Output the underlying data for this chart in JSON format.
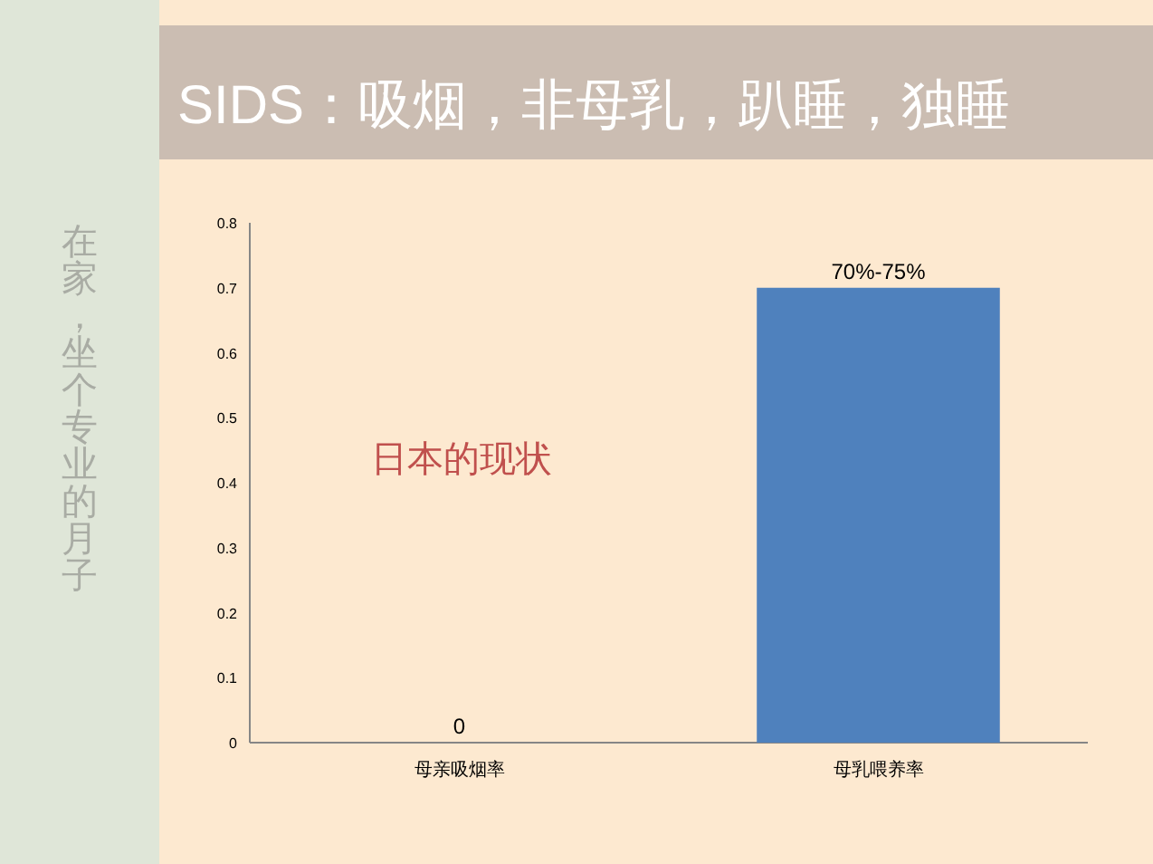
{
  "chart_data": {
    "type": "bar",
    "title": "SIDS：吸烟，非母乳，趴睡，独睡",
    "categories": [
      "母亲吸烟率",
      "母乳喂养率"
    ],
    "values": [
      0,
      0.7
    ],
    "value_labels": [
      "0",
      "70%-75%"
    ],
    "color": "#4f81bd",
    "ylim": [
      0,
      0.8
    ],
    "yticks": [
      0,
      0.1,
      0.2,
      0.3,
      0.4,
      0.5,
      0.6,
      0.7,
      0.8
    ],
    "annotations": [
      "日本的现状",
      "在家，坐个专业的月子"
    ]
  }
}
